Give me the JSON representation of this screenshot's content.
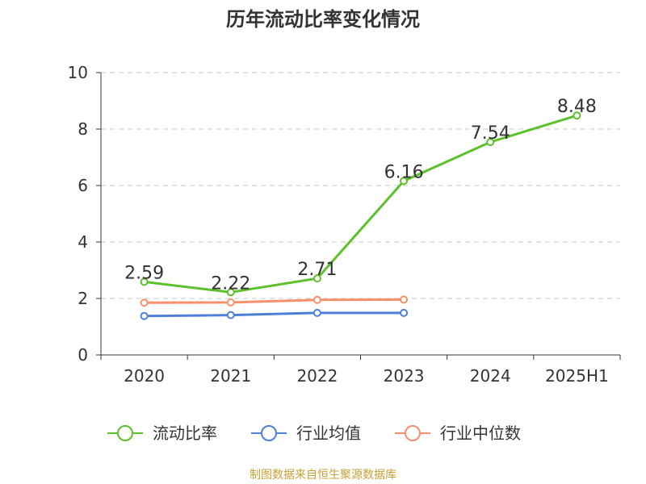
{
  "title": "历年流动比率变化情况",
  "source_note": "制图数据来自恒生聚源数据库",
  "chart_data": {
    "type": "line",
    "categories": [
      "2020",
      "2021",
      "2022",
      "2023",
      "2024",
      "2025H1"
    ],
    "ylim": [
      0,
      10
    ],
    "yticks": [
      0,
      2,
      4,
      6,
      8,
      10
    ],
    "grid": true,
    "legend_position": "bottom",
    "series": [
      {
        "name": "流动比率",
        "color": "#5cc12a",
        "values": [
          2.59,
          2.22,
          2.71,
          6.16,
          7.54,
          8.48
        ],
        "labels": [
          "2.59",
          "2.22",
          "2.71",
          "6.16",
          "7.54",
          "8.48"
        ]
      },
      {
        "name": "行业均值",
        "color": "#4f7fd6",
        "values": [
          1.38,
          1.41,
          1.49,
          1.49,
          null,
          null
        ]
      },
      {
        "name": "行业中位数",
        "color": "#f5916a",
        "values": [
          1.85,
          1.86,
          1.95,
          1.96,
          null,
          null
        ]
      }
    ]
  }
}
